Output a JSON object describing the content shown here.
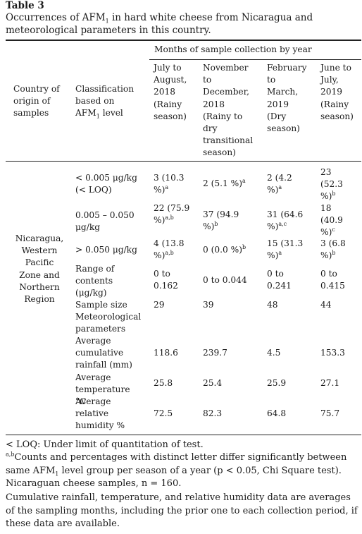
{
  "table_label": "Table 3",
  "caption_main": "Occurrences of AFM",
  "caption_sub": "1",
  "caption_rest": " in hard white cheese from Nicaragua and meteorological parameters in this country.",
  "header": {
    "group": "Months of sample collection by year",
    "country": "Country of origin of samples",
    "classification": "Classification based on AFM",
    "classification_sub": "1",
    "classification_rest": " level",
    "periods": [
      "July to August, 2018 (Rainy season)",
      "November to December, 2018 (Rainy to dry transitional season)",
      "February to March, 2019 (Dry season)",
      "June to July, 2019 (Rainy season)"
    ]
  },
  "region": "Nicaragua, Western Pacific Zone and Northern Region",
  "rows": [
    {
      "label": "< 0.005 μg/kg (< LOQ)",
      "cells": [
        {
          "v": "3 (10.3 %)",
          "sup": "a"
        },
        {
          "v": "2 (5.1 %)",
          "sup": "a"
        },
        {
          "v": "2 (4.2 %)",
          "sup": "a"
        },
        {
          "v": "23 (52.3 %)",
          "sup": "b"
        }
      ]
    },
    {
      "label": "0.005 – 0.050 μg/kg",
      "cells": [
        {
          "v": "22 (75.9 %)",
          "sup": "a,b"
        },
        {
          "v": "37 (94.9 %)",
          "sup": "b"
        },
        {
          "v": "31 (64.6 %)",
          "sup": "a,c"
        },
        {
          "v": "18 (40.9 %)",
          "sup": "c"
        }
      ]
    },
    {
      "label": "> 0.050 μg/kg",
      "cells": [
        {
          "v": "4 (13.8 %)",
          "sup": "a,b"
        },
        {
          "v": "0 (0.0 %)",
          "sup": "b"
        },
        {
          "v": "15 (31.3 %)",
          "sup": "a"
        },
        {
          "v": "3 (6.8 %)",
          "sup": "b"
        }
      ]
    },
    {
      "label": "Range of contents (μg/kg)",
      "cells": [
        {
          "v": "0 to 0.162",
          "sup": ""
        },
        {
          "v": "0 to 0.044",
          "sup": ""
        },
        {
          "v": "0 to 0.241",
          "sup": ""
        },
        {
          "v": "0 to 0.415",
          "sup": ""
        }
      ]
    },
    {
      "label": "Sample size",
      "cells": [
        {
          "v": "29",
          "sup": ""
        },
        {
          "v": "39",
          "sup": ""
        },
        {
          "v": "48",
          "sup": ""
        },
        {
          "v": "44",
          "sup": ""
        }
      ]
    },
    {
      "label": "Meteorological parameters",
      "cells": []
    },
    {
      "label": "Average cumulative rainfall (mm)",
      "cells": [
        {
          "v": "118.6",
          "sup": ""
        },
        {
          "v": "239.7",
          "sup": ""
        },
        {
          "v": "4.5",
          "sup": ""
        },
        {
          "v": "153.3",
          "sup": ""
        }
      ]
    },
    {
      "label": "Average temperature °C",
      "cells": [
        {
          "v": "25.8",
          "sup": ""
        },
        {
          "v": "25.4",
          "sup": ""
        },
        {
          "v": "25.9",
          "sup": ""
        },
        {
          "v": "27.1",
          "sup": ""
        }
      ]
    },
    {
      "label": "Average relative humidity %",
      "cells": [
        {
          "v": "72.5",
          "sup": ""
        },
        {
          "v": "82.3",
          "sup": ""
        },
        {
          "v": "64.8",
          "sup": ""
        },
        {
          "v": "75.7",
          "sup": ""
        }
      ]
    }
  ],
  "footnotes": {
    "loq": "< LOQ: Under limit of quantitation of test.",
    "letters_sup": "a,b",
    "letters_a": "Counts and percentages with distinct letter differ significantly between same AFM",
    "letters_sub": "1",
    "letters_b": " level group per season of a year (p < 0.05, Chi Square test). Nicaraguan cheese samples, n = 160.",
    "averages": "Cumulative rainfall, temperature, and relative humidity data are averages of the sampling months, including the prior one to each collection period, if these data are available."
  }
}
